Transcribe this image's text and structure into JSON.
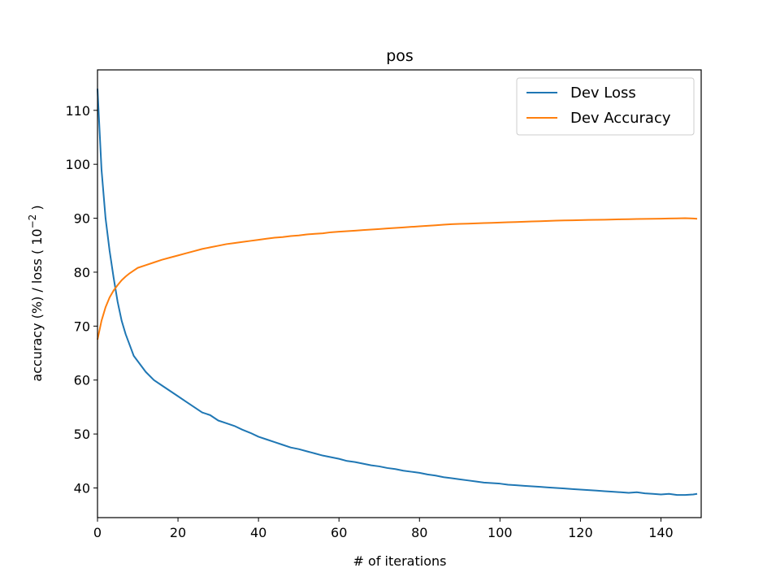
{
  "chart_data": {
    "type": "line",
    "title": "pos",
    "xlabel": "# of iterations",
    "ylabel": "accuracy (%) / loss (  10",
    "ylabel_exponent": "−2",
    "ylabel_close": " )",
    "xlim": [
      0,
      150
    ],
    "ylim": [
      34.5,
      117.5
    ],
    "xticks": [
      0,
      20,
      40,
      60,
      80,
      100,
      120,
      140
    ],
    "yticks": [
      40,
      50,
      60,
      70,
      80,
      90,
      100,
      110
    ],
    "grid": false,
    "legend_position": "top-right",
    "series": [
      {
        "name": "Dev Loss",
        "color": "#1f77b4",
        "x": [
          0,
          1,
          2,
          3,
          4,
          5,
          6,
          7,
          8,
          9,
          10,
          12,
          14,
          16,
          18,
          20,
          22,
          24,
          26,
          28,
          30,
          32,
          34,
          36,
          38,
          40,
          42,
          44,
          46,
          48,
          50,
          52,
          54,
          56,
          58,
          60,
          62,
          64,
          66,
          68,
          70,
          72,
          74,
          76,
          78,
          80,
          82,
          84,
          86,
          88,
          90,
          92,
          94,
          96,
          98,
          100,
          102,
          104,
          106,
          108,
          110,
          112,
          114,
          116,
          118,
          120,
          122,
          124,
          126,
          128,
          130,
          132,
          134,
          136,
          138,
          140,
          142,
          144,
          146,
          148,
          149
        ],
        "y": [
          114,
          99,
          90,
          84,
          79,
          74.5,
          71,
          68.5,
          66.5,
          64.5,
          63.5,
          61.5,
          60,
          59,
          58,
          57,
          56,
          55,
          54,
          53.5,
          52.5,
          52,
          51.5,
          50.8,
          50.2,
          49.5,
          49,
          48.5,
          48,
          47.5,
          47.2,
          46.8,
          46.4,
          46,
          45.7,
          45.4,
          45,
          44.8,
          44.5,
          44.2,
          44,
          43.7,
          43.5,
          43.2,
          43,
          42.8,
          42.5,
          42.3,
          42,
          41.8,
          41.6,
          41.4,
          41.2,
          41,
          40.9,
          40.8,
          40.6,
          40.5,
          40.4,
          40.3,
          40.2,
          40.1,
          40,
          39.9,
          39.8,
          39.7,
          39.6,
          39.5,
          39.4,
          39.3,
          39.2,
          39.1,
          39.2,
          39,
          38.9,
          38.8,
          38.9,
          38.7,
          38.7,
          38.8,
          38.9
        ]
      },
      {
        "name": "Dev Accuracy",
        "color": "#ff7f0e",
        "x": [
          0,
          1,
          2,
          3,
          4,
          5,
          6,
          7,
          8,
          9,
          10,
          12,
          14,
          16,
          18,
          20,
          22,
          24,
          26,
          28,
          30,
          32,
          34,
          36,
          38,
          40,
          42,
          44,
          46,
          48,
          50,
          52,
          54,
          56,
          58,
          60,
          62,
          64,
          66,
          68,
          70,
          72,
          74,
          76,
          78,
          80,
          82,
          84,
          86,
          88,
          90,
          92,
          94,
          96,
          98,
          100,
          102,
          104,
          106,
          108,
          110,
          112,
          114,
          116,
          118,
          120,
          122,
          124,
          126,
          128,
          130,
          132,
          134,
          136,
          138,
          140,
          142,
          144,
          146,
          148,
          149
        ],
        "y": [
          67.5,
          71,
          73.5,
          75.3,
          76.6,
          77.6,
          78.5,
          79.2,
          79.8,
          80.3,
          80.8,
          81.3,
          81.8,
          82.3,
          82.7,
          83.1,
          83.5,
          83.9,
          84.3,
          84.6,
          84.9,
          85.2,
          85.4,
          85.6,
          85.8,
          86,
          86.2,
          86.4,
          86.5,
          86.7,
          86.8,
          87,
          87.1,
          87.2,
          87.4,
          87.5,
          87.6,
          87.7,
          87.8,
          87.9,
          88,
          88.1,
          88.2,
          88.3,
          88.4,
          88.5,
          88.6,
          88.7,
          88.8,
          88.9,
          88.95,
          89,
          89.05,
          89.1,
          89.15,
          89.2,
          89.25,
          89.3,
          89.35,
          89.4,
          89.45,
          89.5,
          89.55,
          89.6,
          89.62,
          89.65,
          89.68,
          89.7,
          89.73,
          89.76,
          89.8,
          89.82,
          89.85,
          89.88,
          89.9,
          89.92,
          89.95,
          89.97,
          90,
          89.95,
          89.9
        ]
      }
    ]
  }
}
